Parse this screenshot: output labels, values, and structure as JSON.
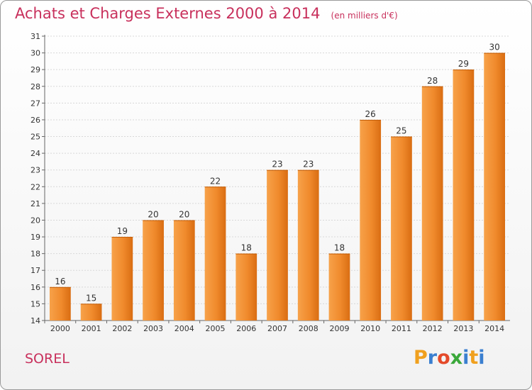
{
  "chart_data": {
    "type": "bar",
    "title": "Achats et Charges Externes 2000 à 2014",
    "subtitle": "(en milliers d'€)",
    "xlabel": "",
    "ylabel": "",
    "categories": [
      "2000",
      "2001",
      "2002",
      "2003",
      "2004",
      "2005",
      "2006",
      "2007",
      "2008",
      "2009",
      "2010",
      "2011",
      "2012",
      "2013",
      "2014"
    ],
    "values": [
      16,
      15,
      19,
      20,
      20,
      22,
      18,
      23,
      23,
      18,
      26,
      25,
      28,
      29,
      30
    ],
    "ylim": [
      14,
      31
    ],
    "yticks": [
      14,
      15,
      16,
      17,
      18,
      19,
      20,
      21,
      22,
      23,
      24,
      25,
      26,
      27,
      28,
      29,
      30,
      31
    ],
    "grid": true,
    "legend": "none",
    "bar_color": "#f08a2c",
    "bar_color_light": "#f7a24a",
    "bar_color_dark": "#d96d12"
  },
  "footer": {
    "place": "SOREL",
    "logo": [
      "P",
      "r",
      "o",
      "x",
      "i",
      "t",
      "i"
    ],
    "logo_colors": [
      "#f0a01e",
      "#3a7fd0",
      "#e44a2a",
      "#3aa83a",
      "#3a7fd0",
      "#f0a01e",
      "#3a7fd0"
    ]
  }
}
